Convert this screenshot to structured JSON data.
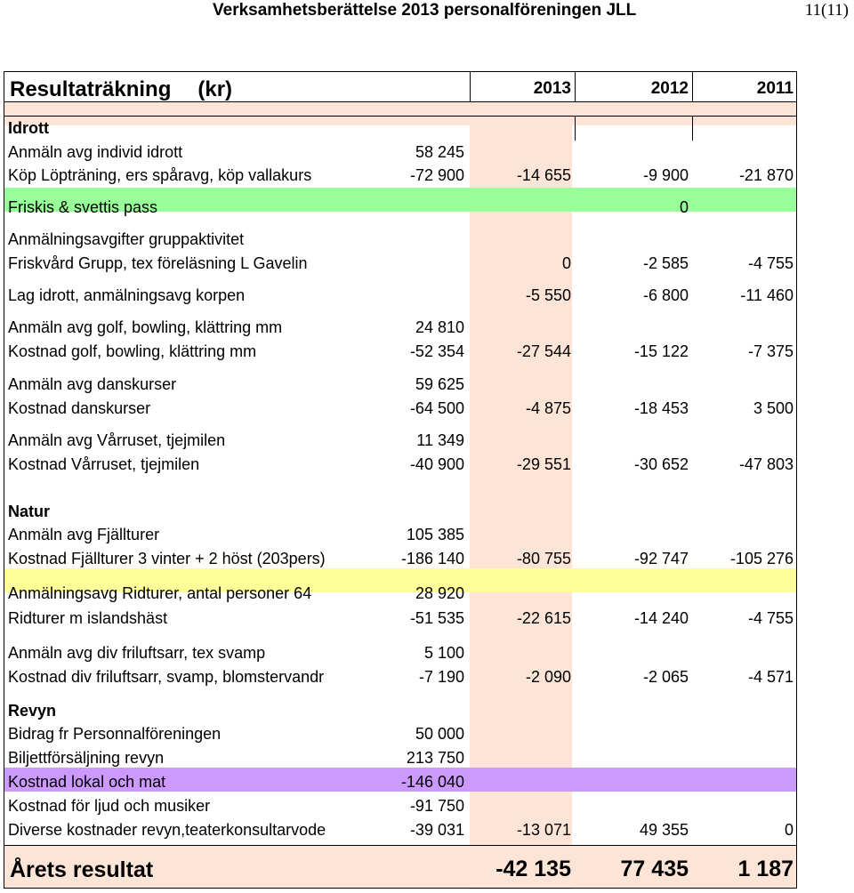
{
  "header": {
    "title": "Verksamhetsberättelse 2013 personalföreningen JLL",
    "page": "11(11)"
  },
  "table": {
    "title": "Resultaträkning",
    "unit": "(kr)",
    "years": [
      "2013",
      "2012",
      "2011"
    ],
    "sections": {
      "idrott": "Idrott",
      "natur": "Natur",
      "revyn": "Revyn"
    },
    "rows": [
      {
        "label": "Anmäln avg individ idrott",
        "c1": "58 245",
        "c2": "",
        "c3": "",
        "c4": ""
      },
      {
        "label": "Köp Löpträning, ers spåravg, köp vallakurs",
        "c1": "-72 900",
        "c2": "-14 655",
        "c3": "-9 900",
        "c4": "-21 870"
      },
      {
        "label": "Friskis & svettis pass",
        "c1": "",
        "c2": "",
        "c3": "0",
        "c4": ""
      },
      {
        "label": "Anmälningsavgifter gruppaktivitet",
        "c1": "",
        "c2": "",
        "c3": "",
        "c4": ""
      },
      {
        "label": "Friskvård Grupp, tex föreläsning L Gavelin",
        "c1": "",
        "c2": "0",
        "c3": "-2 585",
        "c4": "-4 755"
      },
      {
        "label": "Lag idrott, anmälningsavg korpen",
        "c1": "",
        "c2": "-5 550",
        "c3": "-6 800",
        "c4": "-11 460"
      },
      {
        "label": "Anmäln avg golf, bowling, klättring mm",
        "c1": "24 810",
        "c2": "",
        "c3": "",
        "c4": ""
      },
      {
        "label": "Kostnad golf, bowling, klättring mm",
        "c1": "-52 354",
        "c2": "-27 544",
        "c3": "-15 122",
        "c4": "-7 375"
      },
      {
        "label": "Anmäln avg danskurser",
        "c1": "59 625",
        "c2": "",
        "c3": "",
        "c4": ""
      },
      {
        "label": "Kostnad danskurser",
        "c1": "-64 500",
        "c2": "-4 875",
        "c3": "-18 453",
        "c4": "3 500"
      },
      {
        "label": "Anmäln avg Vårruset, tjejmilen",
        "c1": "11 349",
        "c2": "",
        "c3": "",
        "c4": ""
      },
      {
        "label": "Kostnad Vårruset, tjejmilen",
        "c1": "-40 900",
        "c2": "-29 551",
        "c3": "-30 652",
        "c4": "-47 803"
      },
      {
        "label": "Anmäln avg Fjällturer",
        "c1": "105 385",
        "c2": "",
        "c3": "",
        "c4": ""
      },
      {
        "label": "Kostnad Fjällturer 3 vinter + 2 höst (203pers)",
        "c1": "-186 140",
        "c2": "-80 755",
        "c3": "-92 747",
        "c4": "-105 276"
      },
      {
        "label": "Anmälningsavg Ridturer, antal personer 64",
        "c1": "28 920",
        "c2": "",
        "c3": "",
        "c4": ""
      },
      {
        "label": "Ridturer m islandshäst",
        "c1": "-51 535",
        "c2": "-22 615",
        "c3": "-14 240",
        "c4": "-4 755"
      },
      {
        "label": "Anmäln avg div friluftsarr, tex svamp",
        "c1": "5 100",
        "c2": "",
        "c3": "",
        "c4": ""
      },
      {
        "label": "Kostnad div friluftsarr, svamp, blomstervandr",
        "c1": "-7 190",
        "c2": "-2 090",
        "c3": "-2 065",
        "c4": "-4 571"
      },
      {
        "label": "Bidrag fr Personnalföreningen",
        "c1": "50 000",
        "c2": "",
        "c3": "",
        "c4": ""
      },
      {
        "label": "Biljettförsäljning revyn",
        "c1": "213 750",
        "c2": "",
        "c3": "",
        "c4": ""
      },
      {
        "label": "Kostnad lokal och mat",
        "c1": "-146 040",
        "c2": "",
        "c3": "",
        "c4": ""
      },
      {
        "label": "Kostnad för ljud och musiker",
        "c1": "-91 750",
        "c2": "",
        "c3": "",
        "c4": ""
      },
      {
        "label": "Diverse kostnader revyn,teaterkonsultarvode",
        "c1": "-39 031",
        "c2": "-13 071",
        "c3": "49 355",
        "c4": "0"
      }
    ],
    "result": {
      "label": "Årets resultat",
      "y2013": "-42 135",
      "y2012": "77 435",
      "y2011": "1 187"
    }
  }
}
